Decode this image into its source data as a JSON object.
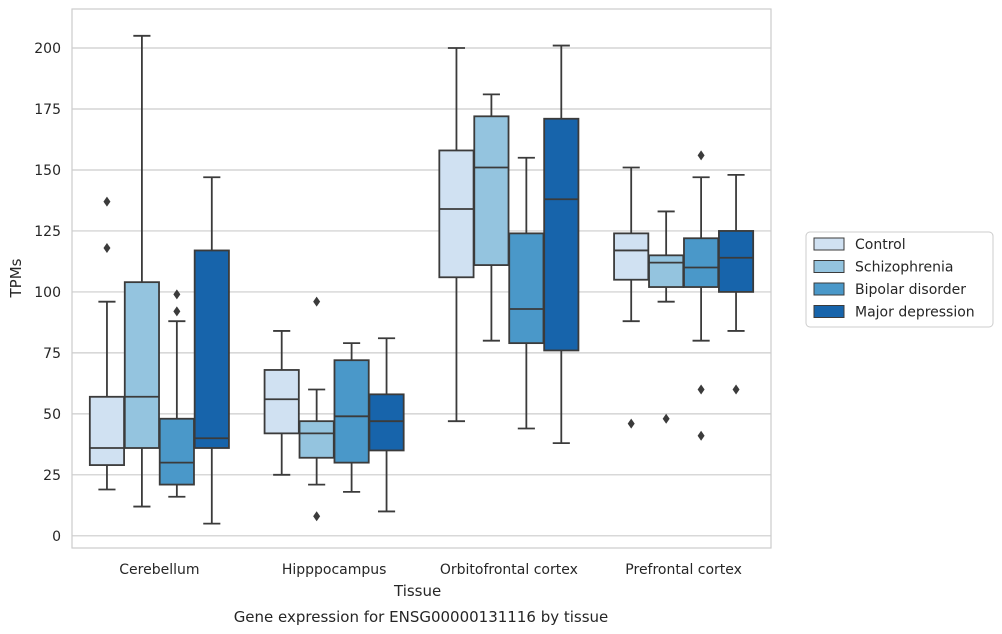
{
  "chart_data": {
    "type": "box",
    "title": "",
    "caption": "Gene expression for ENSG00000131116 by tissue",
    "xlabel": "Tissue",
    "ylabel": "TPMs",
    "ylim": [
      -5,
      216
    ],
    "yticks": [
      0,
      25,
      50,
      75,
      100,
      125,
      150,
      175,
      200
    ],
    "grid": true,
    "legend_position": "right",
    "categories": [
      "Cerebellum",
      "Hipppocampus",
      "Orbitofrontal cortex",
      "Prefrontal cortex"
    ],
    "series": [
      {
        "name": "Control",
        "color": "#d0e1f2",
        "boxes": [
          {
            "category": "Cerebellum",
            "whisker_low": 19,
            "q1": 29,
            "median": 36,
            "q3": 57,
            "whisker_high": 96,
            "outliers": [
              118,
              137
            ]
          },
          {
            "category": "Hipppocampus",
            "whisker_low": 25,
            "q1": 42,
            "median": 56,
            "q3": 68,
            "whisker_high": 84,
            "outliers": []
          },
          {
            "category": "Orbitofrontal cortex",
            "whisker_low": 47,
            "q1": 106,
            "median": 134,
            "q3": 158,
            "whisker_high": 200,
            "outliers": []
          },
          {
            "category": "Prefrontal cortex",
            "whisker_low": 88,
            "q1": 105,
            "median": 117,
            "q3": 124,
            "whisker_high": 151,
            "outliers": [
              46
            ]
          }
        ]
      },
      {
        "name": "Schizophrenia",
        "color": "#94c4df",
        "boxes": [
          {
            "category": "Cerebellum",
            "whisker_low": 12,
            "q1": 36,
            "median": 57,
            "q3": 104,
            "whisker_high": 205,
            "outliers": []
          },
          {
            "category": "Hipppocampus",
            "whisker_low": 21,
            "q1": 32,
            "median": 42,
            "q3": 47,
            "whisker_high": 60,
            "outliers": [
              8,
              96
            ]
          },
          {
            "category": "Orbitofrontal cortex",
            "whisker_low": 80,
            "q1": 111,
            "median": 151,
            "q3": 172,
            "whisker_high": 181,
            "outliers": []
          },
          {
            "category": "Prefrontal cortex",
            "whisker_low": 96,
            "q1": 102,
            "median": 112,
            "q3": 115,
            "whisker_high": 133,
            "outliers": [
              48
            ]
          }
        ]
      },
      {
        "name": "Bipolar disorder",
        "color": "#4a98c9",
        "boxes": [
          {
            "category": "Cerebellum",
            "whisker_low": 16,
            "q1": 21,
            "median": 30,
            "q3": 48,
            "whisker_high": 88,
            "outliers": [
              92,
              99
            ]
          },
          {
            "category": "Hipppocampus",
            "whisker_low": 18,
            "q1": 30,
            "median": 49,
            "q3": 72,
            "whisker_high": 79,
            "outliers": []
          },
          {
            "category": "Orbitofrontal cortex",
            "whisker_low": 44,
            "q1": 79,
            "median": 93,
            "q3": 124,
            "whisker_high": 155,
            "outliers": []
          },
          {
            "category": "Prefrontal cortex",
            "whisker_low": 80,
            "q1": 102,
            "median": 110,
            "q3": 122,
            "whisker_high": 147,
            "outliers": [
              41,
              60,
              156
            ]
          }
        ]
      },
      {
        "name": "Major depression",
        "color": "#1764ab",
        "boxes": [
          {
            "category": "Cerebellum",
            "whisker_low": 5,
            "q1": 36,
            "median": 40,
            "q3": 117,
            "whisker_high": 147,
            "outliers": []
          },
          {
            "category": "Hipppocampus",
            "whisker_low": 10,
            "q1": 35,
            "median": 47,
            "q3": 58,
            "whisker_high": 81,
            "outliers": []
          },
          {
            "category": "Orbitofrontal cortex",
            "whisker_low": 38,
            "q1": 76,
            "median": 138,
            "q3": 171,
            "whisker_high": 201,
            "outliers": []
          },
          {
            "category": "Prefrontal cortex",
            "whisker_low": 84,
            "q1": 100,
            "median": 114,
            "q3": 125,
            "whisker_high": 148,
            "outliers": [
              60
            ]
          }
        ]
      }
    ]
  },
  "colors": {
    "grid": "#cccccc",
    "frame": "#cccccc",
    "box_edge": "#3b3b3b"
  }
}
